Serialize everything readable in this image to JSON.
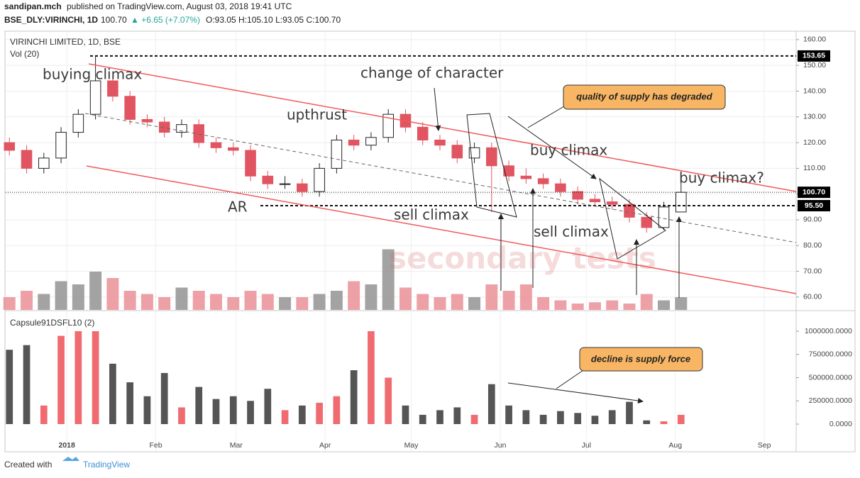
{
  "header": {
    "author": "sandipan.mch",
    "published": "published on TradingView.com, August 03, 2018 19:41 UTC",
    "symbol": "BSE_DLY:VIRINCHI, 1D",
    "last": "100.70",
    "change": "▲ +6.65 (+7.07%)",
    "ohlc": "O:93.05 H:105.10 L:93.05 C:100.70"
  },
  "footer": {
    "created": "Created with",
    "brand": "TradingView"
  },
  "chart_data": [
    {
      "type": "candlestick",
      "title": "VIRINCHI LIMITED, 1D, BSE",
      "volume_label": "Vol (20)",
      "up_color": "#ffffff",
      "down_color": "#e05561",
      "volume_up_color": "#8c8c8c",
      "volume_down_color": "#e88a90",
      "x": [
        -20,
        -14,
        -8,
        -2,
        4,
        10,
        16,
        22,
        28,
        34,
        40,
        46,
        52,
        58,
        64,
        70,
        76,
        82,
        88,
        94,
        100,
        106,
        112,
        118,
        124,
        130,
        136,
        142,
        148,
        154,
        160,
        166,
        172,
        178,
        184,
        190,
        196,
        202,
        208,
        214
      ],
      "open": [
        120,
        117,
        110,
        114,
        124,
        131,
        144,
        138,
        129,
        128,
        124,
        127,
        120,
        118,
        117,
        107,
        104,
        104,
        101,
        110,
        121,
        119,
        122,
        131,
        126,
        121,
        119,
        114,
        118,
        111,
        107,
        106,
        104,
        101,
        98,
        97,
        96,
        91,
        87,
        93.05
      ],
      "high": [
        122,
        119,
        116,
        126,
        133,
        153.65,
        146,
        140,
        131,
        130,
        129,
        129,
        122,
        120,
        119,
        109,
        107,
        106,
        112,
        123,
        123,
        124,
        133,
        133,
        128,
        123,
        121,
        120,
        120,
        113,
        110,
        108,
        106,
        103,
        100,
        99,
        98,
        93,
        97,
        105.1
      ],
      "low": [
        115,
        108,
        108,
        112,
        122,
        129,
        136,
        127,
        126,
        122,
        122,
        118,
        116,
        115,
        105,
        102,
        102,
        99,
        99,
        108,
        117,
        117,
        120,
        124,
        119,
        117,
        112,
        112,
        93,
        105,
        104,
        102,
        99,
        96,
        95,
        94,
        89,
        85,
        86,
        93.05
      ],
      "close": [
        117,
        110,
        114,
        124,
        131,
        144,
        138,
        129,
        128,
        124,
        127,
        120,
        118,
        117,
        107,
        104,
        104,
        101,
        110,
        121,
        119,
        122,
        131,
        126,
        121,
        119,
        114,
        118,
        111,
        107,
        106,
        104,
        101,
        98,
        97,
        96,
        91,
        87,
        95,
        100.7
      ],
      "volume": [
        20,
        30,
        25,
        45,
        40,
        60,
        50,
        30,
        25,
        20,
        35,
        30,
        25,
        20,
        30,
        25,
        20,
        20,
        25,
        30,
        45,
        40,
        95,
        35,
        25,
        20,
        25,
        20,
        40,
        30,
        40,
        20,
        15,
        10,
        12,
        15,
        10,
        25,
        15,
        20
      ],
      "volume_lim": [
        0,
        100
      ],
      "xlim": [
        -21.3,
        254.1
      ],
      "xticks": [
        {
          "value": 0,
          "label": "2018"
        },
        {
          "value": 31,
          "label": "Feb"
        },
        {
          "value": 59,
          "label": "Mar"
        },
        {
          "value": 90,
          "label": "Apr"
        },
        {
          "value": 120,
          "label": "May"
        },
        {
          "value": 151,
          "label": "Jun"
        },
        {
          "value": 181,
          "label": "Jul"
        },
        {
          "value": 212,
          "label": "Aug"
        },
        {
          "value": 243,
          "label": "Sep"
        }
      ],
      "ylim": [
        55,
        163
      ],
      "yticks": [
        {
          "value": 60,
          "label": "60.00"
        },
        {
          "value": 70,
          "label": "70.00"
        },
        {
          "value": 80,
          "label": "80.00"
        },
        {
          "value": 90,
          "label": "90.00"
        },
        {
          "value": 100,
          "label": "100.00"
        },
        {
          "value": 110,
          "label": "110.00"
        },
        {
          "value": 120,
          "label": "120.00"
        },
        {
          "value": 130,
          "label": "130.00"
        },
        {
          "value": 140,
          "label": "140.00"
        },
        {
          "value": 150,
          "label": "150.00"
        },
        {
          "value": 160,
          "label": "160.00"
        }
      ],
      "levels": [
        {
          "value": 153.65,
          "label": "153.65"
        },
        {
          "value": 100.7,
          "label": "100.70"
        },
        {
          "value": 95.5,
          "label": "95.50"
        }
      ],
      "grid": true,
      "annotations": [
        "buying climax",
        "change of character",
        "upthrust",
        "buy climax",
        "buy climax?",
        "AR",
        "sell climax",
        "sell climax",
        "quality of supply has degraded",
        "decline is supply force",
        "secondary tests"
      ]
    },
    {
      "type": "histogram",
      "title": "Capsule91DSFL10 (2)",
      "up_color": "#ef6b70",
      "down_color": "#555555",
      "values": [
        800000,
        850000,
        200000,
        950000,
        1000000,
        1000000,
        650000,
        450000,
        300000,
        550000,
        180000,
        400000,
        270000,
        300000,
        250000,
        380000,
        150000,
        200000,
        230000,
        300000,
        580000,
        1000000,
        500000,
        200000,
        100000,
        150000,
        180000,
        100000,
        430000,
        200000,
        150000,
        100000,
        140000,
        120000,
        90000,
        150000,
        240000,
        40000,
        30000,
        100000
      ],
      "ylim": [
        -290000,
        1206000
      ],
      "yticks": [
        {
          "value": 0,
          "label": "0.0000"
        },
        {
          "value": 250000,
          "label": "250000.0000"
        },
        {
          "value": 500000,
          "label": "500000.0000"
        },
        {
          "value": 750000,
          "label": "750000.0000"
        },
        {
          "value": 1000000,
          "label": "1000000.0000"
        }
      ]
    }
  ]
}
